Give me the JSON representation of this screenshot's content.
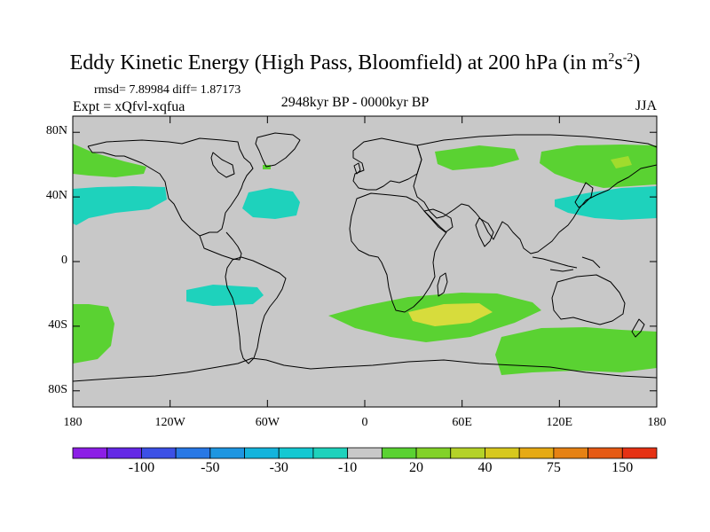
{
  "title_main": "Eddy Kinetic Energy (High Pass, Bloomfield) at 200 hPa (in m",
  "title_sup1": "2",
  "title_mid": "s",
  "title_sup2": "-2",
  "title_end": ")",
  "stats": "rmsd= 7.89984 diff= 1.87173",
  "expt": "Expt = xQfvl-xqfua",
  "period": "2948kyr BP - 0000kyr BP",
  "season": "JJA",
  "colors": {
    "land": "#c8c8c8",
    "coast": "#000000",
    "frame": "#000000",
    "green": "#5ad232",
    "cyan": "#1ed2bc",
    "yellow": "#d7dc3c",
    "lime": "#a0dc2d"
  },
  "map_data": {
    "projection": "cylindrical equidistant",
    "lon_range": [
      -180,
      180
    ],
    "lat_range": [
      -90,
      90
    ],
    "y_ticks": [
      {
        "lat": 80,
        "label": "80N"
      },
      {
        "lat": 40,
        "label": "40N"
      },
      {
        "lat": 0,
        "label": "0"
      },
      {
        "lat": -40,
        "label": "40S"
      },
      {
        "lat": -80,
        "label": "80S"
      }
    ],
    "x_ticks": [
      {
        "lon": -180,
        "label": "180"
      },
      {
        "lon": -120,
        "label": "120W"
      },
      {
        "lon": -60,
        "label": "60W"
      },
      {
        "lon": 0,
        "label": "0"
      },
      {
        "lon": 60,
        "label": "60E"
      },
      {
        "lon": 120,
        "label": "120E"
      },
      {
        "lon": 180,
        "label": "180"
      }
    ]
  },
  "colorbar": {
    "colors": [
      "#8c1ee6",
      "#6428e6",
      "#3c50e6",
      "#2878e6",
      "#1e96e1",
      "#14b4dc",
      "#14c8d2",
      "#1ed2bc",
      "#c8c8c8",
      "#5ad232",
      "#82d228",
      "#b4d228",
      "#d7c81e",
      "#e6aa14",
      "#e68214",
      "#e65a14",
      "#e63214"
    ],
    "labels": [
      {
        "after_box": 2,
        "label": "-100"
      },
      {
        "after_box": 4,
        "label": "-50"
      },
      {
        "after_box": 6,
        "label": "-30"
      },
      {
        "after_box": 8,
        "label": "-10"
      },
      {
        "after_box": 10,
        "label": "20"
      },
      {
        "after_box": 12,
        "label": "40"
      },
      {
        "after_box": 14,
        "label": "75"
      },
      {
        "after_box": 16,
        "label": "150"
      }
    ]
  }
}
